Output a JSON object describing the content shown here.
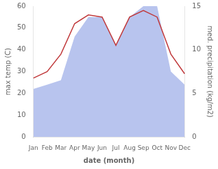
{
  "chart_data": {
    "type": "line",
    "xlabel": "date (month)",
    "ylabel": "max temp (C)",
    "y2label": "med. precipitation (kg/m2)",
    "categories": [
      "Jan",
      "Feb",
      "Mar",
      "Apr",
      "May",
      "Jun",
      "Jul",
      "Aug",
      "Sep",
      "Oct",
      "Nov",
      "Dec"
    ],
    "series": [
      {
        "type": "area",
        "axis": "y2",
        "color": "#b8c4ee",
        "values": [
          5.5,
          6.0,
          6.5,
          11.5,
          13.75,
          13.75,
          10.5,
          13.75,
          15.0,
          15.0,
          7.5,
          6.0
        ]
      },
      {
        "type": "line",
        "color": "#c0393b",
        "values": [
          27,
          30,
          38,
          52,
          56,
          55,
          42,
          55,
          58,
          55,
          38,
          29
        ]
      }
    ],
    "ylim": [
      0,
      60
    ],
    "yticks": [
      0,
      10,
      20,
      30,
      40,
      50,
      60
    ],
    "y2lim": [
      0,
      15
    ],
    "y2ticks": [
      0,
      5,
      10,
      15
    ],
    "grid": false
  }
}
